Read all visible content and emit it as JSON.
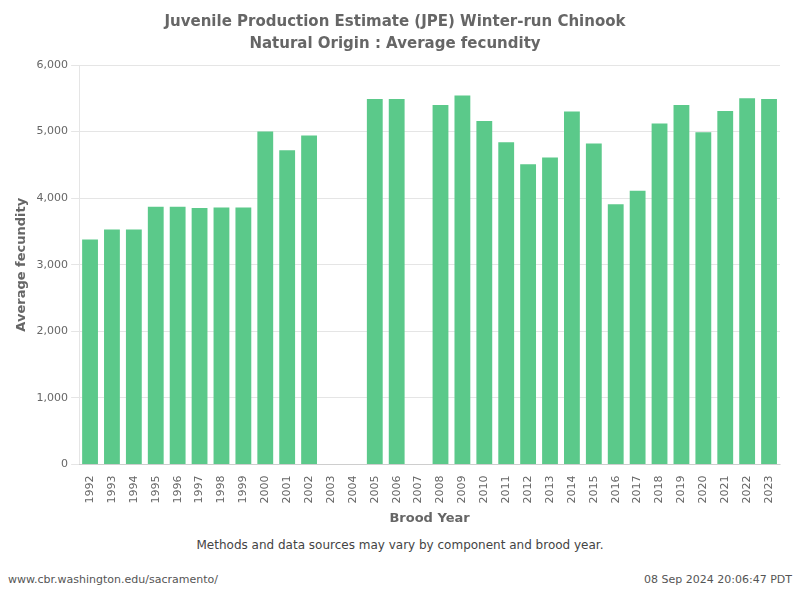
{
  "chart_data": {
    "type": "bar",
    "title": "Juvenile Production Estimate (JPE) Winter-run Chinook",
    "subtitle": "Natural Origin : Average fecundity",
    "xlabel": "Brood Year",
    "ylabel": "Average fecundity",
    "annotations": [
      "Methods and data sources may vary by component and brood year.",
      "www.cbr.washington.edu/sacramento/",
      "08 Sep 2024 20:06:47 PDT"
    ],
    "categories": [
      "1992",
      "1993",
      "1994",
      "1995",
      "1996",
      "1997",
      "1998",
      "1999",
      "2000",
      "2001",
      "2002",
      "2003",
      "2004",
      "2005",
      "2006",
      "2007",
      "2008",
      "2009",
      "2010",
      "2011",
      "2012",
      "2013",
      "2014",
      "2015",
      "2016",
      "2017",
      "2018",
      "2019",
      "2020",
      "2021",
      "2022",
      "2023"
    ],
    "values": [
      3380,
      3530,
      3530,
      3870,
      3870,
      3850,
      3860,
      3860,
      5000,
      4720,
      4940,
      0,
      0,
      5490,
      5490,
      0,
      5400,
      5540,
      5160,
      4840,
      4510,
      4610,
      5300,
      4820,
      3910,
      4110,
      5120,
      5400,
      4990,
      5310,
      5500,
      5490
    ],
    "color": "#5bc98a",
    "ylim": [
      0,
      6000
    ],
    "yticks": [
      0,
      {
        "value": 1000,
        "label": "1,000"
      },
      {
        "value": 2000,
        "label": "2,000"
      },
      {
        "value": 3000,
        "label": "3,000"
      },
      {
        "value": 4000,
        "label": "4,000"
      },
      {
        "value": 5000,
        "label": "5,000"
      },
      {
        "value": 6000,
        "label": "6,000"
      }
    ],
    "grid": true
  }
}
